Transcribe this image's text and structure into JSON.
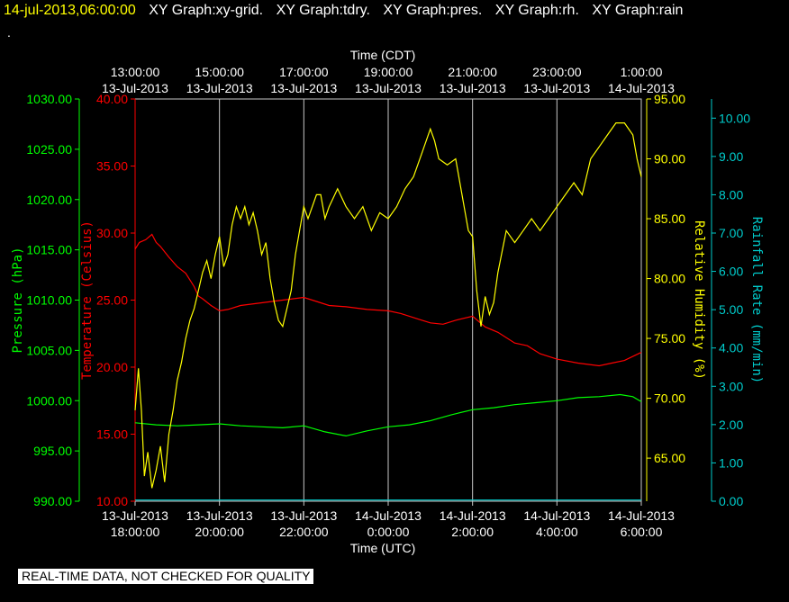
{
  "header": {
    "timestamp": "14-jul-2013,06:00:00",
    "labels": [
      "XY Graph:xy-grid.",
      "XY Graph:tdry.",
      "XY Graph:pres.",
      "XY Graph:rh.",
      "XY Graph:rain"
    ]
  },
  "dot": ".",
  "footer": "REAL-TIME DATA, NOT CHECKED FOR QUALITY",
  "colors": {
    "temperature": "#ff0000",
    "pressure": "#00ff00",
    "humidity": "#ffff00",
    "rain": "#00cccc",
    "grid": "#c8c8c8"
  },
  "chart_data": {
    "type": "line",
    "xlabel_bottom": "Time (UTC)",
    "xlabel_top": "Time (CDT)",
    "xlim_hours": [
      0,
      12
    ],
    "x_ticks_bottom": [
      {
        "h": 0,
        "line1": "13-Jul-2013",
        "line2": "18:00:00"
      },
      {
        "h": 2,
        "line1": "13-Jul-2013",
        "line2": "20:00:00"
      },
      {
        "h": 4,
        "line1": "13-Jul-2013",
        "line2": "22:00:00"
      },
      {
        "h": 6,
        "line1": "14-Jul-2013",
        "line2": "0:00:00"
      },
      {
        "h": 8,
        "line1": "14-Jul-2013",
        "line2": "2:00:00"
      },
      {
        "h": 10,
        "line1": "14-Jul-2013",
        "line2": "4:00:00"
      },
      {
        "h": 12,
        "line1": "14-Jul-2013",
        "line2": "6:00:00"
      }
    ],
    "x_ticks_top": [
      {
        "h": 0,
        "line1": "13:00:00",
        "line2": "13-Jul-2013"
      },
      {
        "h": 2,
        "line1": "15:00:00",
        "line2": "13-Jul-2013"
      },
      {
        "h": 4,
        "line1": "17:00:00",
        "line2": "13-Jul-2013"
      },
      {
        "h": 6,
        "line1": "19:00:00",
        "line2": "13-Jul-2013"
      },
      {
        "h": 8,
        "line1": "21:00:00",
        "line2": "13-Jul-2013"
      },
      {
        "h": 10,
        "line1": "23:00:00",
        "line2": "13-Jul-2013"
      },
      {
        "h": 12,
        "line1": "1:00:00",
        "line2": "14-Jul-2013"
      }
    ],
    "axes": {
      "pressure": {
        "label": "Pressure (hPa)",
        "ylim": [
          990,
          1030
        ],
        "ticks": [
          "990.00",
          "995.00",
          "1000.00",
          "1005.00",
          "1010.00",
          "1015.00",
          "1020.00",
          "1025.00",
          "1030.00"
        ]
      },
      "temperature": {
        "label": "Temperature (Celsius)",
        "ylim": [
          10,
          40
        ],
        "ticks": [
          "10.00",
          "15.00",
          "20.00",
          "25.00",
          "30.00",
          "35.00",
          "40.00"
        ]
      },
      "humidity": {
        "label": "Relative Humidity (%)",
        "ylim": [
          61.4,
          95
        ],
        "ticks": [
          "65.00",
          "70.00",
          "75.00",
          "80.00",
          "85.00",
          "90.00",
          "95.00"
        ]
      },
      "rain": {
        "label": "Rainfall Rate (mm/min)",
        "ylim": [
          0,
          10.5
        ],
        "ticks": [
          "0.00",
          "1.00",
          "2.00",
          "3.00",
          "4.00",
          "5.00",
          "6.00",
          "7.00",
          "8.00",
          "9.00",
          "10.00"
        ]
      }
    },
    "series": [
      {
        "key": "temperature",
        "x": [
          0,
          0.1,
          0.25,
          0.4,
          0.5,
          0.6,
          0.8,
          1.0,
          1.2,
          1.4,
          1.5,
          1.6,
          1.8,
          2.0,
          2.2,
          2.5,
          3.0,
          3.5,
          4.0,
          4.3,
          4.6,
          5.0,
          5.5,
          6.0,
          6.3,
          6.7,
          7.0,
          7.3,
          7.6,
          8.0,
          8.3,
          8.6,
          9.0,
          9.3,
          9.6,
          10.0,
          10.5,
          11.0,
          11.3,
          11.6,
          12.0
        ],
        "y": [
          28.8,
          29.3,
          29.5,
          29.9,
          29.3,
          29.0,
          28.2,
          27.5,
          27.0,
          26.0,
          25.3,
          25.1,
          24.6,
          24.2,
          24.3,
          24.6,
          24.8,
          25.0,
          25.2,
          24.9,
          24.6,
          24.5,
          24.3,
          24.2,
          24.0,
          23.6,
          23.3,
          23.2,
          23.5,
          23.8,
          23.0,
          22.6,
          21.8,
          21.6,
          21.0,
          20.6,
          20.3,
          20.1,
          20.3,
          20.5,
          21.1
        ]
      },
      {
        "key": "pressure",
        "x": [
          0,
          0.5,
          1.0,
          1.5,
          2.0,
          2.5,
          3.0,
          3.5,
          4.0,
          4.5,
          5.0,
          5.5,
          6.0,
          6.5,
          7.0,
          7.5,
          8.0,
          8.5,
          9.0,
          9.5,
          10.0,
          10.5,
          11.0,
          11.5,
          11.8,
          12.0
        ],
        "y": [
          997.8,
          997.6,
          997.5,
          997.6,
          997.7,
          997.5,
          997.4,
          997.3,
          997.5,
          996.9,
          996.5,
          997.0,
          997.4,
          997.6,
          998.0,
          998.6,
          999.1,
          999.3,
          999.6,
          999.8,
          1000.0,
          1000.3,
          1000.4,
          1000.6,
          1000.4,
          999.9
        ]
      },
      {
        "key": "humidity",
        "x": [
          0,
          0.08,
          0.15,
          0.22,
          0.3,
          0.4,
          0.5,
          0.6,
          0.7,
          0.8,
          0.9,
          1.0,
          1.1,
          1.2,
          1.3,
          1.4,
          1.5,
          1.6,
          1.7,
          1.8,
          1.9,
          2.0,
          2.1,
          2.2,
          2.3,
          2.4,
          2.5,
          2.6,
          2.7,
          2.8,
          2.9,
          3.0,
          3.1,
          3.2,
          3.3,
          3.4,
          3.5,
          3.6,
          3.7,
          3.8,
          3.9,
          4.0,
          4.1,
          4.2,
          4.3,
          4.4,
          4.5,
          4.6,
          4.8,
          5.0,
          5.2,
          5.4,
          5.6,
          5.8,
          6.0,
          6.2,
          6.4,
          6.6,
          6.8,
          7.0,
          7.1,
          7.2,
          7.4,
          7.6,
          7.8,
          7.9,
          8.0,
          8.1,
          8.2,
          8.3,
          8.4,
          8.5,
          8.6,
          8.8,
          9.0,
          9.2,
          9.4,
          9.6,
          9.8,
          10.0,
          10.2,
          10.4,
          10.6,
          10.8,
          11.0,
          11.2,
          11.4,
          11.6,
          11.8,
          11.9,
          12.0
        ],
        "y": [
          69,
          72.5,
          69,
          63.5,
          65.5,
          62.5,
          64,
          66,
          63,
          67,
          69,
          71.5,
          73,
          75,
          76.5,
          77.5,
          79,
          80.5,
          81.5,
          80,
          82,
          83.5,
          81,
          82,
          84.5,
          86,
          85,
          86,
          84.5,
          85.5,
          84,
          82,
          83,
          80,
          78,
          76.5,
          76,
          77.5,
          79,
          82,
          84,
          86,
          85,
          86,
          87,
          87,
          85,
          86,
          87.5,
          86,
          85,
          86,
          84,
          85.5,
          85,
          86,
          87.5,
          88.5,
          90.5,
          92.5,
          91.5,
          90,
          89.5,
          90,
          86,
          84,
          83.5,
          79,
          76,
          78.5,
          77,
          78,
          80.5,
          84,
          83,
          84,
          85,
          84,
          85,
          86,
          87,
          88,
          87,
          90,
          91,
          92,
          93,
          93,
          92,
          90,
          88.5
        ]
      },
      {
        "key": "rain",
        "x": [
          0,
          12
        ],
        "y": [
          0.03,
          0.03
        ]
      }
    ]
  }
}
